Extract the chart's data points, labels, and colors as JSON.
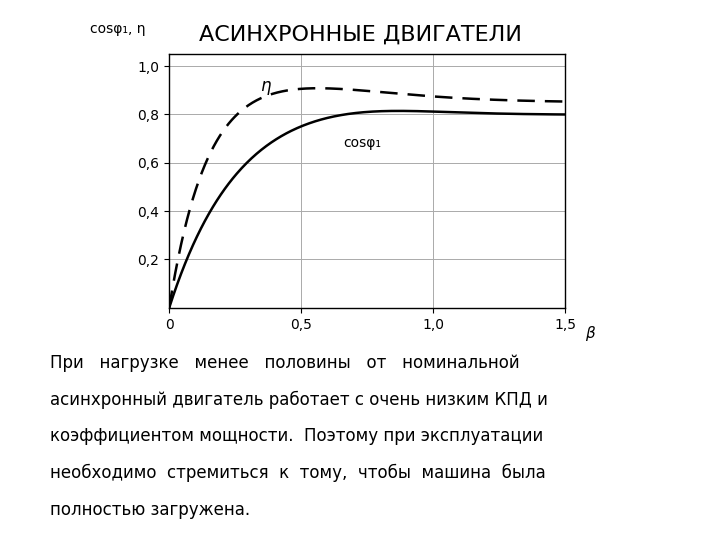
{
  "title": "АСИНХРОННЫЕ ДВИГАТЕЛИ",
  "title_fontsize": 16,
  "ylabel": "cosφ₁, η",
  "xlabel": "β",
  "xlim": [
    0,
    1.5
  ],
  "ylim": [
    0,
    1.05
  ],
  "xticks": [
    0,
    0.5,
    1.0,
    1.5
  ],
  "yticks": [
    0.2,
    0.4,
    0.6,
    0.8,
    1.0
  ],
  "xtick_labels": [
    "0",
    "0,5",
    "1,0",
    "1,5"
  ],
  "ytick_labels": [
    "0,2",
    "0,4",
    "0,6",
    "0,8",
    "1,0"
  ],
  "eta_label": "η",
  "cosphi_label": "cosφ₁",
  "body_lines": [
    "При   нагрузке   менее   половины   от   номинальной",
    "асинхронный двигатель работает с очень низким КПД и",
    "коэффициентом мощности.  Поэтому при эксплуатации",
    "необходимо  стремиться  к  тому,  чтобы  машина  была",
    "полностью загружена."
  ],
  "background_color": "#ffffff",
  "line_color": "#000000",
  "grid_color": "#aaaaaa"
}
